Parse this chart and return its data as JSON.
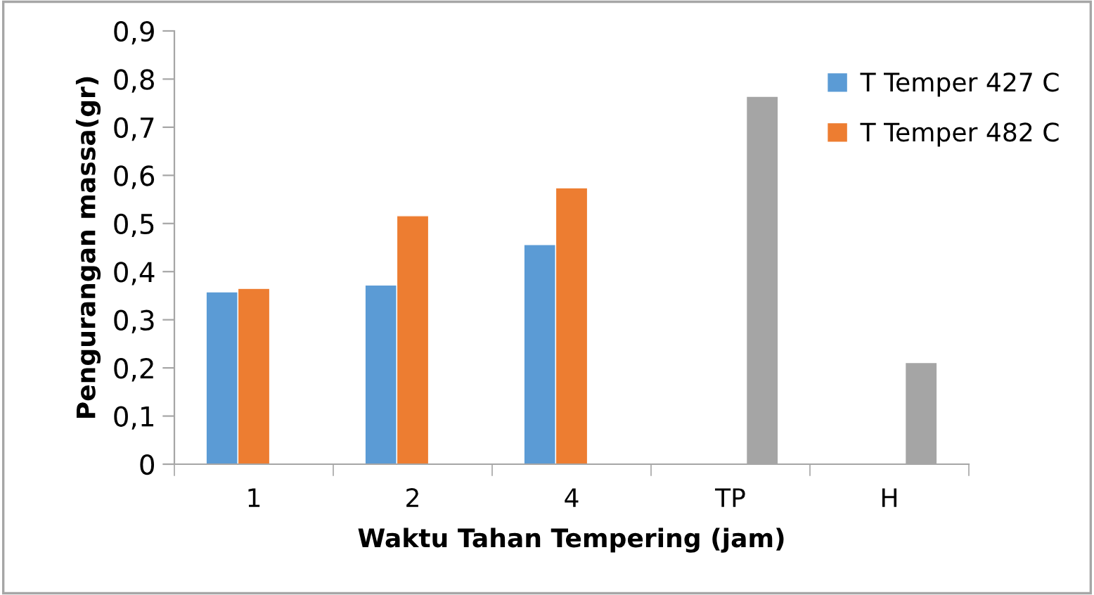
{
  "chart_data": {
    "type": "bar",
    "xlabel": "Waktu Tahan Tempering (jam)",
    "ylabel": "Pengurangan massa(gr)",
    "categories": [
      "1",
      "2",
      "4",
      "TP",
      "H"
    ],
    "series": [
      {
        "name": "T Temper 427 C",
        "color": "#5b9bd5",
        "values": [
          0.358,
          0.372,
          0.456,
          null,
          null
        ]
      },
      {
        "name": "T Temper 482 C",
        "color": "#ed7d31",
        "values": [
          0.365,
          0.516,
          0.574,
          null,
          null
        ]
      },
      {
        "color": "#a5a5a5",
        "values": [
          null,
          null,
          null,
          0.764,
          0.211
        ]
      }
    ],
    "ylim": [
      0,
      0.9
    ],
    "yticks": [
      0,
      {
        "value": 0.1,
        "label": "0,1"
      },
      {
        "value": 0.2,
        "label": "0,2"
      },
      {
        "value": 0.3,
        "label": "0,3"
      },
      {
        "value": 0.4,
        "label": "0,4"
      },
      {
        "value": 0.5,
        "label": "0,5"
      },
      {
        "value": 0.6,
        "label": "0,6"
      },
      {
        "value": 0.7,
        "label": "0,7"
      },
      {
        "value": 0.8,
        "label": "0,8"
      },
      {
        "value": 0.9,
        "label": "0,9"
      }
    ],
    "grid": false,
    "legend": "top right"
  }
}
